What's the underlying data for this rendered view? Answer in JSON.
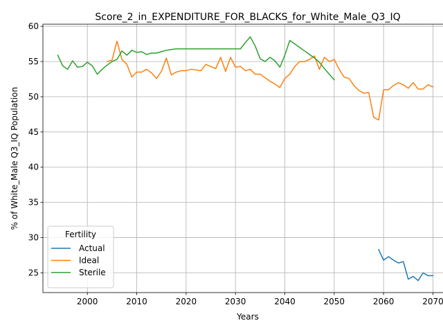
{
  "chart_data": {
    "type": "line",
    "title": "Score_2_in_EXPENDITURE_FOR_BLACKS_for_White_Male_Q3_IQ",
    "xlabel": "Years",
    "ylabel": "% of White_Male Q3_IQ Population",
    "xlim": [
      1991,
      2074
    ],
    "ylim": [
      22.2,
      60.3
    ],
    "xticks": [
      2000,
      2010,
      2020,
      2030,
      2040,
      2050,
      2060,
      2070
    ],
    "yticks": [
      25,
      30,
      35,
      40,
      45,
      50,
      55,
      60
    ],
    "grid": true,
    "legend": {
      "title": "Fertility",
      "position": "lower-left"
    },
    "series": [
      {
        "name": "Actual",
        "color": "#1f77b4",
        "x": [
          2059,
          2060,
          2061,
          2062,
          2063,
          2064,
          2065,
          2066,
          2067,
          2068,
          2069,
          2070
        ],
        "y": [
          28.3,
          26.8,
          27.3,
          26.8,
          26.4,
          26.6,
          24.1,
          24.5,
          23.9,
          25.0,
          24.6,
          24.6
        ]
      },
      {
        "name": "Ideal",
        "color": "#ff7f0e",
        "x": [
          2004,
          2005,
          2006,
          2007,
          2008,
          2009,
          2010,
          2011,
          2012,
          2013,
          2014,
          2015,
          2016,
          2017,
          2018,
          2019,
          2020,
          2021,
          2022,
          2023,
          2024,
          2025,
          2026,
          2027,
          2028,
          2029,
          2030,
          2031,
          2032,
          2033,
          2034,
          2035,
          2036,
          2037,
          2038,
          2039,
          2040,
          2041,
          2042,
          2043,
          2044,
          2045,
          2046,
          2047,
          2048,
          2049,
          2050,
          2051,
          2052,
          2053,
          2054,
          2055,
          2056,
          2057,
          2058,
          2059,
          2060,
          2061,
          2062,
          2063,
          2064,
          2065,
          2066,
          2067,
          2068,
          2069,
          2070
        ],
        "y": [
          55.0,
          55.2,
          57.9,
          55.3,
          54.6,
          52.8,
          53.5,
          53.5,
          53.9,
          53.4,
          52.6,
          53.6,
          55.5,
          53.1,
          53.5,
          53.7,
          53.7,
          53.9,
          53.8,
          53.7,
          54.6,
          54.3,
          54.0,
          55.6,
          53.6,
          55.6,
          54.2,
          54.3,
          53.7,
          53.9,
          53.2,
          53.2,
          52.7,
          52.2,
          51.8,
          51.3,
          52.6,
          53.2,
          54.3,
          55.0,
          55.0,
          55.3,
          55.8,
          53.9,
          55.6,
          55.0,
          55.3,
          53.9,
          52.8,
          52.6,
          51.6,
          50.9,
          50.5,
          50.6,
          47.1,
          46.7,
          51.0,
          51.0,
          51.6,
          52.0,
          51.7,
          51.2,
          52.0,
          51.1,
          51.1,
          51.7,
          51.4
        ]
      },
      {
        "name": "Sterile",
        "color": "#2ca02c",
        "x": [
          1994,
          1995,
          1996,
          1997,
          1998,
          1999,
          2000,
          2001,
          2002,
          2003,
          2004,
          2005,
          2006,
          2007,
          2008,
          2009,
          2010,
          2011,
          2012,
          2013,
          2014,
          2015,
          2016,
          2017,
          2018,
          2019,
          2020,
          2021,
          2022,
          2023,
          2024,
          2025,
          2026,
          2027,
          2028,
          2029,
          2030,
          2031,
          2032,
          2033,
          2034,
          2035,
          2036,
          2037,
          2038,
          2039,
          2040,
          2041,
          2042,
          2043,
          2044,
          2045,
          2046,
          2047,
          2048,
          2049,
          2050
        ],
        "y": [
          55.9,
          54.4,
          53.9,
          55.1,
          54.2,
          54.3,
          54.9,
          54.4,
          53.2,
          53.9,
          54.5,
          55.0,
          55.3,
          56.5,
          55.9,
          56.6,
          56.3,
          56.4,
          56.0,
          56.2,
          56.2,
          56.4,
          56.6,
          56.7,
          56.8,
          56.8,
          56.8,
          56.8,
          56.8,
          56.8,
          56.8,
          56.8,
          56.8,
          56.8,
          56.8,
          56.8,
          56.8,
          56.8,
          57.7,
          58.5,
          57.2,
          55.4,
          55.0,
          55.6,
          55.1,
          54.2,
          55.9,
          58.0,
          57.5,
          57.0,
          56.5,
          56.0,
          55.5,
          54.9,
          54.0,
          53.2,
          52.4
        ]
      }
    ]
  }
}
